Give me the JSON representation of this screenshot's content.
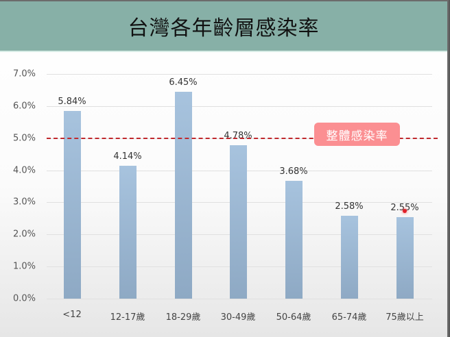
{
  "header": {
    "title": "台灣各年齡層感染率"
  },
  "chart_data": {
    "type": "bar",
    "title": "台灣各年齡層感染率",
    "xlabel": "",
    "ylabel": "",
    "ylim": [
      0,
      7.0
    ],
    "yticks": [
      "0.0%",
      "1.0%",
      "2.0%",
      "3.0%",
      "4.0%",
      "5.0%",
      "6.0%",
      "7.0%"
    ],
    "categories": [
      "<12",
      "12-17歲",
      "18-29歲",
      "30-49歲",
      "50-64歲",
      "65-74歲",
      "75歲以上"
    ],
    "values": [
      5.84,
      4.14,
      6.45,
      4.78,
      3.68,
      2.58,
      2.55
    ],
    "value_labels": [
      "5.84%",
      "4.14%",
      "6.45%",
      "4.78%",
      "3.68%",
      "2.58%",
      "2.55%"
    ],
    "bar_color": "#9db9d6",
    "grid": true,
    "reference_line": {
      "value": 5.0,
      "label": "整體感染率",
      "color": "#c0282d",
      "style": "dashed"
    },
    "annotations": [
      {
        "text": "整體感染率",
        "background": "#fb8f92",
        "color": "#ffffff"
      }
    ]
  },
  "colors": {
    "header_bg": "#87b0a7",
    "bar": "#9db9d6",
    "reference_line": "#c0282d",
    "badge_bg": "#fb8f92"
  }
}
